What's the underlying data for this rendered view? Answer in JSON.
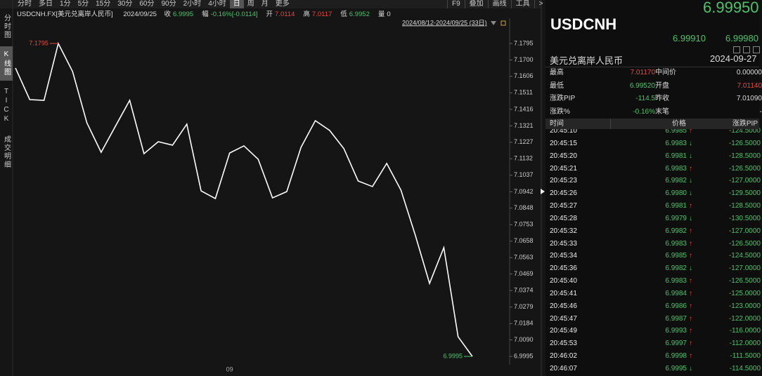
{
  "toolbar": {
    "periods": [
      "分时",
      "多日",
      "1分",
      "5分",
      "15分",
      "30分",
      "60分",
      "90分",
      "2小时",
      "4小时",
      "日",
      "周",
      "月",
      "更多"
    ],
    "active": "日",
    "tools": [
      "F9",
      "叠加",
      "画线",
      "工具",
      ">"
    ]
  },
  "sidebar": {
    "tabs": [
      "分时图",
      "K线图",
      "TICK",
      "成交明细"
    ],
    "active": "K线图"
  },
  "info_bar": {
    "symbol": "USDCNH.FX[美元兑离岸人民币]",
    "date": "2024/09/25",
    "fields": [
      {
        "label": "收",
        "value": "6.9995",
        "color": "#4cc36a"
      },
      {
        "label": "幅",
        "value": "-0.16%[-0.0114]",
        "color": "#4cc36a"
      },
      {
        "label": "开",
        "value": "7.0114",
        "color": "#f0463c"
      },
      {
        "label": "高",
        "value": "7.0117",
        "color": "#f0463c"
      },
      {
        "label": "低",
        "value": "6.9952",
        "color": "#4cc36a"
      },
      {
        "label": "量",
        "value": "0",
        "color": "#dddddd"
      }
    ]
  },
  "chart_data": {
    "type": "line",
    "subtitle": "2024/08/12-2024/09/25 (33日)",
    "color": "#ffffff",
    "categories": [
      null,
      null,
      null,
      null,
      null,
      null,
      null,
      null,
      null,
      null,
      null,
      null,
      null,
      null,
      null,
      "09",
      null,
      null,
      null,
      null,
      null,
      null,
      null,
      null,
      null,
      null,
      null,
      null,
      null,
      null,
      null,
      null,
      null
    ],
    "values": [
      7.1654,
      7.1472,
      7.1468,
      7.1795,
      7.1634,
      7.1339,
      7.1169,
      7.1319,
      7.1468,
      7.1161,
      7.123,
      7.121,
      7.1331,
      7.0947,
      7.0903,
      7.1165,
      7.1206,
      7.1129,
      7.0907,
      7.0943,
      7.1198,
      7.1351,
      7.1295,
      7.119,
      7.1004,
      7.0972,
      7.1105,
      7.0951,
      7.0693,
      7.0415,
      7.0621,
      7.0108,
      6.9995
    ],
    "ylim": [
      6.9947,
      7.1932
    ],
    "yticks": [
      7.1795,
      {
        "value": 7.17,
        "label": "7.1700"
      },
      7.1606,
      7.1511,
      7.1416,
      7.1321,
      7.1227,
      7.1132,
      7.1037,
      7.0942,
      7.0848,
      7.0753,
      7.0658,
      7.0563,
      7.0469,
      7.0374,
      7.0279,
      7.0184,
      {
        "value": 7.009,
        "label": "7.0090"
      },
      6.9995
    ],
    "max_label": "7.1795",
    "max_color": "#f0463c",
    "last_label": "6.9995",
    "last_color": "#4cc36a"
  },
  "quote": {
    "price": "6.99950",
    "symbol": "USDCNH",
    "bid": "6.99910",
    "ask": "6.99980",
    "name": "美元兑离岸人民币",
    "date": "2024-09-27",
    "stats": [
      [
        {
          "label": "最高",
          "value": "7.01170",
          "color": "#f0463c"
        },
        {
          "label": "中间价",
          "value": "0.00000",
          "color": "#dddddd"
        }
      ],
      [
        {
          "label": "最低",
          "value": "6.99520",
          "color": "#4cc36a"
        },
        {
          "label": "开盘",
          "value": "7.01140",
          "color": "#f0463c"
        }
      ],
      [
        {
          "label": "涨跌PIP",
          "value": "-114.5",
          "color": "#4cc36a"
        },
        {
          "label": "昨收",
          "value": "7.01090",
          "color": "#dddddd"
        }
      ],
      [
        {
          "label": "涨跌%",
          "value": "-0.16%",
          "color": "#4cc36a"
        },
        {
          "label": "末笔",
          "value": "-",
          "color": "#dddddd"
        }
      ]
    ],
    "ticks_header": [
      "时间",
      "价格",
      "涨跌PIP"
    ],
    "arrow_colors": {
      "↑": "#f0463c",
      "↓": "#4cc36a"
    },
    "ticks": [
      {
        "time": "20:45:10",
        "price": "6.9985",
        "arrow": "↑",
        "pip": "-124.5000"
      },
      {
        "time": "20:45:15",
        "price": "6.9983",
        "arrow": "↓",
        "pip": "-126.5000"
      },
      {
        "time": "20:45:20",
        "price": "6.9981",
        "arrow": "↓",
        "pip": "-128.5000"
      },
      {
        "time": "20:45:21",
        "price": "6.9983",
        "arrow": "↑",
        "pip": "-126.5000"
      },
      {
        "time": "20:45:23",
        "price": "6.9982",
        "arrow": "↓",
        "pip": "-127.0000"
      },
      {
        "time": "20:45:26",
        "price": "6.9980",
        "arrow": "↓",
        "pip": "-129.5000"
      },
      {
        "time": "20:45:27",
        "price": "6.9981",
        "arrow": "↑",
        "pip": "-128.5000"
      },
      {
        "time": "20:45:28",
        "price": "6.9979",
        "arrow": "↓",
        "pip": "-130.5000"
      },
      {
        "time": "20:45:32",
        "price": "6.9982",
        "arrow": "↑",
        "pip": "-127.0000"
      },
      {
        "time": "20:45:33",
        "price": "6.9983",
        "arrow": "↑",
        "pip": "-126.5000"
      },
      {
        "time": "20:45:34",
        "price": "6.9985",
        "arrow": "↑",
        "pip": "-124.5000"
      },
      {
        "time": "20:45:36",
        "price": "6.9982",
        "arrow": "↓",
        "pip": "-127.0000"
      },
      {
        "time": "20:45:40",
        "price": "6.9983",
        "arrow": "↑",
        "pip": "-126.5000"
      },
      {
        "time": "20:45:41",
        "price": "6.9984",
        "arrow": "↑",
        "pip": "-125.0000"
      },
      {
        "time": "20:45:46",
        "price": "6.9986",
        "arrow": "↑",
        "pip": "-123.0000"
      },
      {
        "time": "20:45:47",
        "price": "6.9987",
        "arrow": "↑",
        "pip": "-122.0000"
      },
      {
        "time": "20:45:49",
        "price": "6.9993",
        "arrow": "↑",
        "pip": "-116.0000"
      },
      {
        "time": "20:45:53",
        "price": "6.9997",
        "arrow": "↑",
        "pip": "-112.0000"
      },
      {
        "time": "20:46:02",
        "price": "6.9998",
        "arrow": "↑",
        "pip": "-111.5000"
      },
      {
        "time": "20:46:07",
        "price": "6.9995",
        "arrow": "↓",
        "pip": "-114.5000"
      }
    ]
  }
}
